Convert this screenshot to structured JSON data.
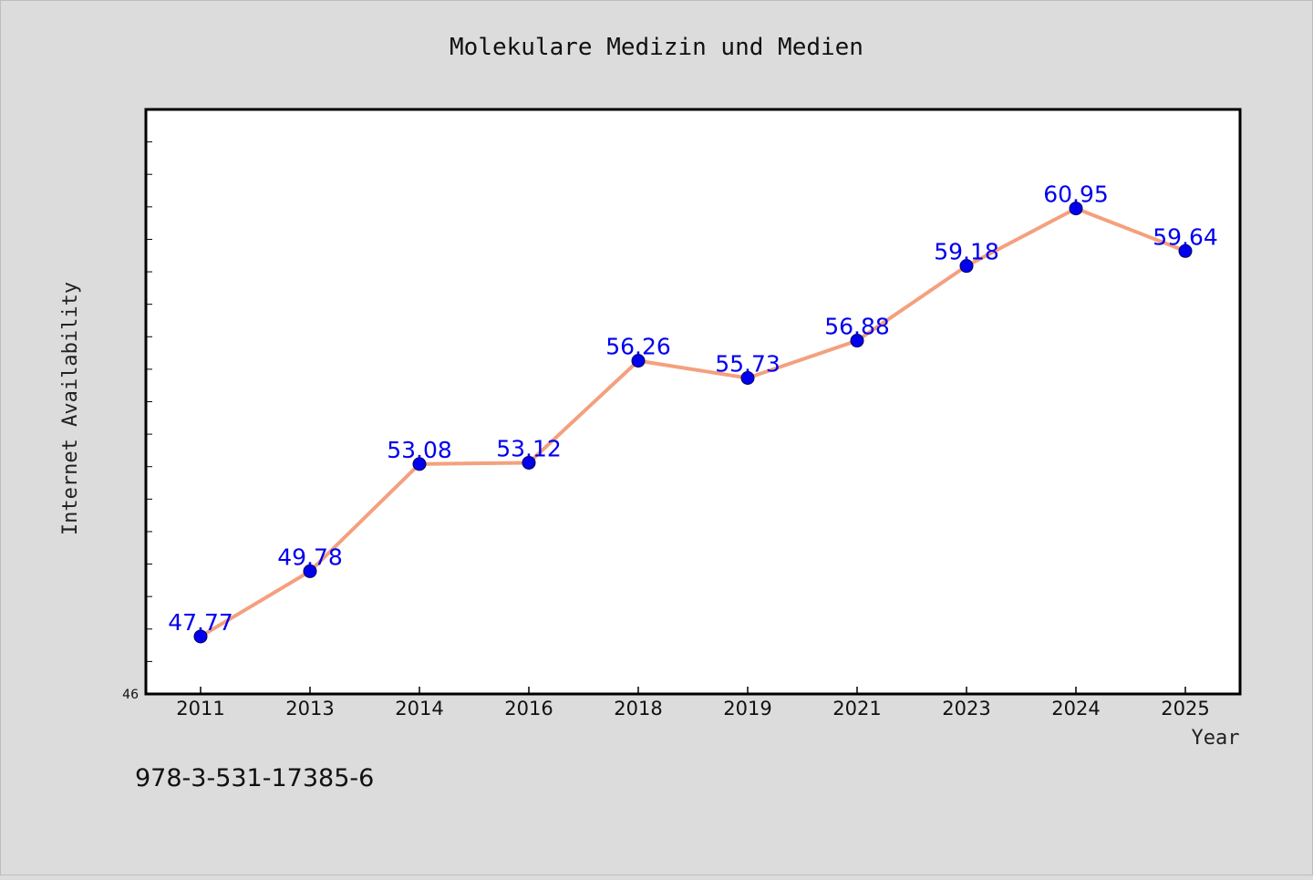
{
  "chart_data": {
    "type": "line",
    "title": "Molekulare Medizin und Medien",
    "xlabel": "Year",
    "ylabel": "Internet Availability",
    "categories": [
      "2011",
      "2013",
      "2014",
      "2016",
      "2018",
      "2019",
      "2021",
      "2023",
      "2024",
      "2025"
    ],
    "series": [
      {
        "values": [
          47.77,
          49.78,
          53.08,
          53.12,
          56.26,
          55.73,
          56.88,
          59.18,
          60.95,
          59.64
        ],
        "line_color": "#f4a07e",
        "marker_color": "#0000ee",
        "label_color": "#0000ee"
      }
    ],
    "ylim": [
      46,
      64
    ],
    "y_tick_labels": [
      "46"
    ],
    "grid": false,
    "data_labels": true
  },
  "footer": {
    "isbn": "978-3-531-17385-6"
  }
}
